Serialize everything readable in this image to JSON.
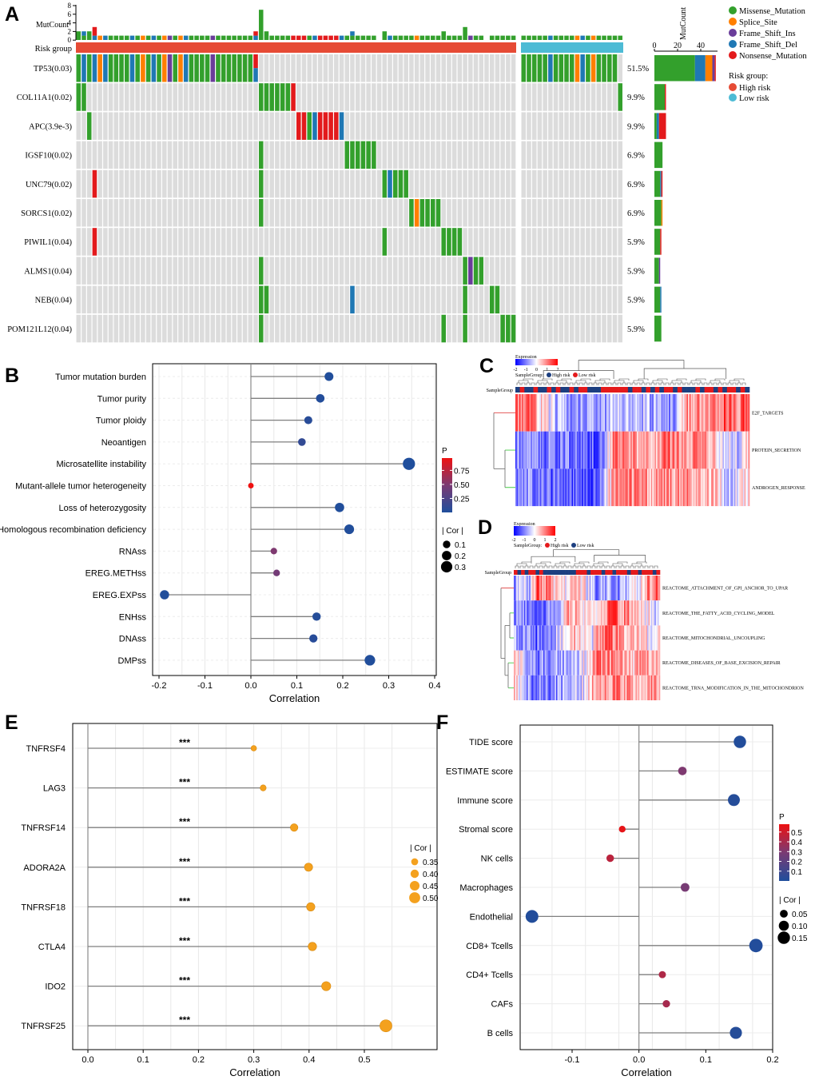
{
  "panel_labels": {
    "a": "A",
    "b": "B",
    "c": "C",
    "d": "D",
    "e": "E",
    "f": "F"
  },
  "chart_data": [
    {
      "panel": "A",
      "type": "heatmap",
      "subtype": "oncoprint",
      "top_axis_label": "MutCount",
      "top_ticks": [
        "8",
        "6",
        "4",
        "2",
        "0"
      ],
      "risk_label": "Risk group",
      "right_axis_label": "MutCount",
      "right_ticks": [
        "0",
        "20",
        "40"
      ],
      "n_high": 82,
      "n_low": 19,
      "genes": [
        {
          "label": "TP53(0.03)",
          "pct": "51.5%",
          "high": [
            [
              0,
              "GDGDSDGGGGDGSGDGSIGSDGGGGIGGGGGGGX"
            ]
          ],
          "low": [
            [
              0,
              "GGGGGDGGGGSDGSGGGG"
            ]
          ]
        },
        {
          "label": "COL11A1(0.02)",
          "pct": "9.9%",
          "high": [
            [
              0,
              "GG"
            ],
            [
              34,
              "GGGGGGN"
            ]
          ],
          "low": [
            [
              18,
              "G"
            ]
          ]
        },
        {
          "label": "APC(3.9e-3)",
          "pct": "9.9%",
          "high": [
            [
              2,
              "G"
            ],
            [
              41,
              "NNGDNNNND"
            ]
          ],
          "low": []
        },
        {
          "label": "IGSF10(0.02)",
          "pct": "6.9%",
          "high": [
            [
              34,
              "G"
            ],
            [
              50,
              "GGGGGG"
            ]
          ],
          "low": []
        },
        {
          "label": "UNC79(0.02)",
          "pct": "6.9%",
          "high": [
            [
              3,
              "N"
            ],
            [
              34,
              "G"
            ],
            [
              57,
              "GDGGG"
            ]
          ],
          "low": []
        },
        {
          "label": "SORCS1(0.02)",
          "pct": "6.9%",
          "high": [
            [
              34,
              "G"
            ],
            [
              62,
              "GSGGGG"
            ]
          ],
          "low": []
        },
        {
          "label": "PIWIL1(0.04)",
          "pct": "5.9%",
          "high": [
            [
              3,
              "N"
            ],
            [
              57,
              "G"
            ],
            [
              68,
              "GGGG"
            ]
          ],
          "low": []
        },
        {
          "label": "ALMS1(0.04)",
          "pct": "5.9%",
          "high": [
            [
              34,
              "G"
            ],
            [
              72,
              "GIGG"
            ]
          ],
          "low": []
        },
        {
          "label": "NEB(0.04)",
          "pct": "5.9%",
          "high": [
            [
              34,
              "GG"
            ],
            [
              51,
              "D"
            ],
            [
              72,
              "G"
            ],
            [
              77,
              "GG"
            ]
          ],
          "low": []
        },
        {
          "label": "POM121L12(0.04)",
          "pct": "5.9%",
          "high": [
            [
              34,
              "G"
            ],
            [
              68,
              "G"
            ],
            [
              72,
              "G"
            ],
            [
              79,
              "GGG"
            ]
          ],
          "low": []
        }
      ],
      "legend": {
        "types": [
          {
            "code": "G",
            "label": "Missense_Mutation",
            "color": "#33a02c"
          },
          {
            "code": "S",
            "label": "Splice_Site",
            "color": "#ff7f00"
          },
          {
            "code": "I",
            "label": "Frame_Shift_Ins",
            "color": "#6a3d9a"
          },
          {
            "code": "D",
            "label": "Frame_Shift_Del",
            "color": "#1f78b4"
          },
          {
            "code": "N",
            "label": "Nonsense_Mutation",
            "color": "#e31a1c"
          }
        ],
        "risk_title": "Risk group:",
        "risk": [
          {
            "label": "High risk",
            "color": "#e64b35"
          },
          {
            "label": "Low risk",
            "color": "#4dbbd5"
          }
        ]
      }
    },
    {
      "panel": "B",
      "type": "scatter",
      "subtype": "lollipop",
      "xlabel": "Correlation",
      "xlim": [
        -0.2,
        0.4
      ],
      "xticks": [
        "-0.2",
        "-0.1",
        "0.0",
        "0.1",
        "0.2",
        "0.3",
        "0.4"
      ],
      "items": [
        {
          "label": "Tumor mutation burden",
          "cor": 0.17,
          "p": 0.01
        },
        {
          "label": "Tumor purity",
          "cor": 0.151,
          "p": 0.02
        },
        {
          "label": "Tumor ploidy",
          "cor": 0.125,
          "p": 0.05
        },
        {
          "label": "Neoantigen",
          "cor": 0.111,
          "p": 0.1
        },
        {
          "label": "Microsatellite instability",
          "cor": 0.344,
          "p": 0.0
        },
        {
          "label": "Mutant-allele tumor heterogeneity",
          "cor": 0.0,
          "p": 0.97
        },
        {
          "label": "Loss of heterozygosity",
          "cor": 0.193,
          "p": 0.01
        },
        {
          "label": "Homologous recombination deficiency",
          "cor": 0.214,
          "p": 0.01
        },
        {
          "label": "RNAss",
          "cor": 0.05,
          "p": 0.5
        },
        {
          "label": "EREG.METHss",
          "cor": 0.056,
          "p": 0.45
        },
        {
          "label": "EREG.EXPss",
          "cor": -0.188,
          "p": 0.01
        },
        {
          "label": "ENHss",
          "cor": 0.143,
          "p": 0.03
        },
        {
          "label": "DNAss",
          "cor": 0.136,
          "p": 0.04
        },
        {
          "label": "DMPss",
          "cor": 0.259,
          "p": 0.01
        }
      ],
      "legend": {
        "p_title": "P",
        "p_ticks": [
          "0.75",
          "0.50",
          "0.25"
        ],
        "p_range": [
          0,
          0.97
        ],
        "size_title": "| Cor |",
        "size_ticks": [
          "0.1",
          "0.2",
          "0.3"
        ]
      }
    },
    {
      "panel": "C",
      "type": "heatmap",
      "legend_title": "Expression",
      "scale_ticks": [
        "-2",
        "-1",
        "0",
        "1",
        "2"
      ],
      "group_legend_prefix": "SampleGroup:",
      "group_label": "SampleGroup",
      "groups": [
        {
          "code": "H",
          "label": "High risk",
          "color": "#1c3f80"
        },
        {
          "code": "L",
          "label": "Low risk",
          "color": "#e41a1c"
        }
      ],
      "sample_groups": "HLHHLHHLHLHHLHLLHHHLLLLLLHLLHLHLHLLHLHHHLHLLHLHLLHLH",
      "rows": [
        {
          "label": "E2F_TARGETS",
          "profile": [
            1,
            1.5,
            0.3,
            -0.3,
            -0.8,
            -0.8,
            -0.7,
            -0.9,
            -0.6,
            -0.3,
            -0.5,
            -0.6,
            -0.8,
            -0.9,
            0.8,
            0.9,
            0.7,
            1.4,
            1.0,
            1.5
          ]
        },
        {
          "label": "PROTEIN_SECRETION",
          "profile": [
            -1,
            -1,
            -0.9,
            -1.2,
            -1.0,
            -1.1,
            -1.2,
            -1.3,
            1.1,
            1.0,
            0.8,
            0.5,
            1.0,
            0.9,
            1.0,
            0.8,
            0.6,
            -0.3,
            -0.4,
            0.3
          ]
        },
        {
          "label": "ANDROGEN_RESPONSE",
          "profile": [
            -1.2,
            -0.9,
            -1.0,
            -1.3,
            -1.0,
            -1.4,
            -1.2,
            -1.3,
            1.0,
            0.9,
            0.8,
            0.7,
            0.9,
            0.8,
            1.0,
            0.7,
            0.5,
            -0.2,
            -0.3,
            0.2
          ]
        }
      ]
    },
    {
      "panel": "D",
      "type": "heatmap",
      "legend_title": "Expression",
      "scale_ticks": [
        "-2",
        "-1",
        "0",
        "1",
        "2"
      ],
      "group_legend_prefix": "SampleGroup:",
      "group_label": "SampleGroup",
      "groups": [
        {
          "code": "H",
          "label": "High risk",
          "color": "#e41a1c"
        },
        {
          "code": "L",
          "label": "Low risk",
          "color": "#1c3f80"
        }
      ],
      "sample_groups": "HLHLHHLHLLLLLLLLLHHHLHHHLHHLHHHLHHLHHHLH",
      "rows": [
        {
          "label": "REACTOME_ATTACHMENT_OF_GPI_ANCHOR_TO_UPAR",
          "profile": [
            -0.8,
            -0.3,
            -0.6,
            1.2,
            1.0,
            0.6,
            -0.2,
            0.3,
            0.8,
            0.2,
            -0.3,
            -1.0,
            -0.6,
            -1.1,
            -0.8,
            -0.3,
            -0.2,
            0.6,
            1.0,
            1.2
          ]
        },
        {
          "label": "REACTOME_THE_FATTY_ACID_CYCLING_MODEL",
          "profile": [
            -0.7,
            -0.9,
            -1.0,
            -1.3,
            -1.2,
            -0.7,
            -0.3,
            0.6,
            0.8,
            0.3,
            0.2,
            0.5,
            0.9,
            1.2,
            1.0,
            0.8,
            0.6,
            0.2,
            0.0,
            -0.3
          ]
        },
        {
          "label": "REACTOME_MITOCHONDRIAL_UNCOUPLING",
          "profile": [
            -0.7,
            -1.0,
            -0.9,
            -1.3,
            -1.2,
            -0.6,
            -0.4,
            0.7,
            0.6,
            0.2,
            -0.2,
            0.5,
            1.0,
            1.1,
            0.9,
            0.6,
            0.5,
            0.3,
            -0.2,
            0.1
          ]
        },
        {
          "label": "REACTOME_DISEASES_OF_BASE_EXCISION_REPAIR",
          "profile": [
            0.4,
            -0.3,
            -1.0,
            -1.0,
            -0.9,
            -0.8,
            -0.7,
            -0.8,
            -0.5,
            -0.2,
            0.6,
            1.0,
            0.9,
            1.0,
            0.8,
            0.6,
            0.4,
            0.9,
            0.8,
            0.7
          ]
        },
        {
          "label": "REACTOME_TRNA_MODIFICATION_IN_THE_MITOCHONDRION",
          "profile": [
            0.3,
            -0.4,
            -1.0,
            -1.1,
            -1.0,
            -0.9,
            -0.8,
            -0.7,
            -0.6,
            -0.2,
            0.5,
            0.9,
            1.0,
            1.0,
            0.9,
            0.8,
            0.5,
            0.9,
            1.0,
            0.7
          ]
        }
      ]
    },
    {
      "panel": "E",
      "type": "scatter",
      "subtype": "lollipop",
      "xlabel": "Correlation",
      "xlim": [
        0,
        0.5
      ],
      "xticks": [
        "0.0",
        "0.1",
        "0.2",
        "0.3",
        "0.4",
        "0.5"
      ],
      "color": "#f4a11e",
      "items": [
        {
          "label": "TNFRSF4",
          "cor": 0.3,
          "sig": "***"
        },
        {
          "label": "LAG3",
          "cor": 0.317,
          "sig": "***"
        },
        {
          "label": "TNFRSF14",
          "cor": 0.373,
          "sig": "***"
        },
        {
          "label": "ADORA2A",
          "cor": 0.399,
          "sig": "***"
        },
        {
          "label": "TNFRSF18",
          "cor": 0.403,
          "sig": "***"
        },
        {
          "label": "CTLA4",
          "cor": 0.406,
          "sig": "***"
        },
        {
          "label": "IDO2",
          "cor": 0.431,
          "sig": "***"
        },
        {
          "label": "TNFRSF25",
          "cor": 0.539,
          "sig": "***"
        }
      ],
      "legend": {
        "size_title": "| Cor |",
        "size_ticks": [
          "0.35",
          "0.40",
          "0.45",
          "0.50"
        ]
      }
    },
    {
      "panel": "F",
      "type": "scatter",
      "subtype": "lollipop",
      "xlabel": "Correlation",
      "xlim": [
        -0.1,
        0.2
      ],
      "xticks": [
        "-0.1",
        "0.0",
        "0.1",
        "0.2"
      ],
      "items": [
        {
          "label": "TIDE score",
          "cor": 0.151,
          "p": 0.01
        },
        {
          "label": "ESTIMATE score",
          "cor": 0.065,
          "p": 0.3
        },
        {
          "label": "Immune score",
          "cor": 0.142,
          "p": 0.02
        },
        {
          "label": "Stromal score",
          "cor": -0.025,
          "p": 0.56
        },
        {
          "label": "NK cells",
          "cor": -0.043,
          "p": 0.45
        },
        {
          "label": "Macrophages",
          "cor": 0.069,
          "p": 0.28
        },
        {
          "label": "Endothelial",
          "cor": -0.16,
          "p": 0.01
        },
        {
          "label": "CD8+ Tcells",
          "cor": 0.175,
          "p": 0.01
        },
        {
          "label": "CD4+ Tcells",
          "cor": 0.035,
          "p": 0.42
        },
        {
          "label": "CAFs",
          "cor": 0.041,
          "p": 0.4
        },
        {
          "label": "B cells",
          "cor": 0.145,
          "p": 0.02
        }
      ],
      "legend": {
        "p_title": "P",
        "p_ticks": [
          "0.5",
          "0.4",
          "0.3",
          "0.2",
          "0.1"
        ],
        "p_range": [
          0,
          0.58
        ],
        "size_title": "| Cor |",
        "size_ticks": [
          "0.05",
          "0.10",
          "0.15"
        ]
      }
    }
  ]
}
